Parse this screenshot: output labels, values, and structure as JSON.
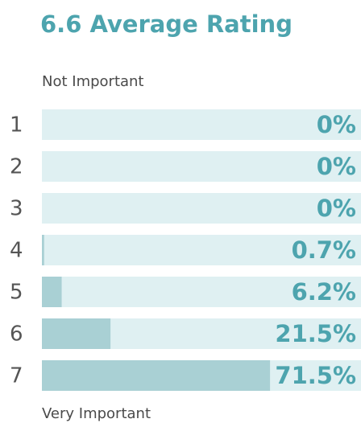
{
  "chart_data": {
    "type": "bar",
    "title": "6.6 Average Rating",
    "annotations": [
      "Not Important",
      "Very Important"
    ],
    "categories": [
      "1",
      "2",
      "3",
      "4",
      "5",
      "6",
      "7"
    ],
    "values": [
      0,
      0,
      0,
      0.7,
      6.2,
      21.5,
      71.5
    ],
    "value_labels": [
      "0%",
      "0%",
      "0%",
      "0.7%",
      "6.2%",
      "21.5%",
      "71.5%"
    ],
    "xlim": [
      0,
      100
    ],
    "color": "#a9d0d4",
    "track_color": "#dff0f2"
  }
}
